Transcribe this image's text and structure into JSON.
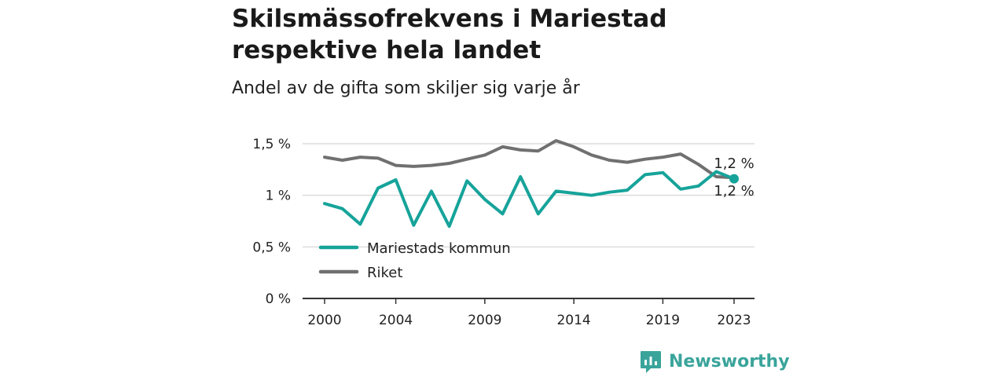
{
  "header": {
    "title": "Skilsmässofrekvens i Mariestad respektive hela landet",
    "subtitle": "Andel av de gifta som skiljer sig varje år"
  },
  "colors": {
    "mariestad": "#16a39a",
    "riket": "#707070",
    "grid": "#dcdcdc",
    "axis": "#333333",
    "brand": "#3aa49b"
  },
  "brand": {
    "name": "Newsworthy",
    "icon": "newsworthy-logo-icon"
  },
  "chart_data": {
    "type": "line",
    "title": "Skilsmässofrekvens i Mariestad respektive hela landet",
    "subtitle": "Andel av de gifta som skiljer sig varje år",
    "xlabel": "",
    "ylabel": "",
    "x": [
      2000,
      2001,
      2002,
      2003,
      2004,
      2005,
      2006,
      2007,
      2008,
      2009,
      2010,
      2011,
      2012,
      2013,
      2014,
      2015,
      2016,
      2017,
      2018,
      2019,
      2020,
      2021,
      2022,
      2023
    ],
    "xticks": [
      2000,
      2004,
      2009,
      2014,
      2019,
      2023
    ],
    "xtick_labels": [
      "2000",
      "2004",
      "2009",
      "2014",
      "2019",
      "2023"
    ],
    "yticks": [
      0,
      0.5,
      1,
      1.5
    ],
    "ytick_labels": [
      "0 %",
      "0,5 %",
      "1 %",
      "1,5 %"
    ],
    "ylim": [
      0,
      1.5
    ],
    "grid": true,
    "legend_position": "bottom-left",
    "series": [
      {
        "name": "Mariestads kommun",
        "color": "#16a39a",
        "values": [
          0.92,
          0.87,
          0.72,
          1.07,
          1.15,
          0.71,
          1.04,
          0.7,
          1.14,
          0.96,
          0.82,
          1.18,
          0.82,
          1.04,
          1.02,
          1.0,
          1.03,
          1.05,
          1.2,
          1.22,
          1.06,
          1.09,
          1.23,
          1.16
        ],
        "end_label": "1,2 %"
      },
      {
        "name": "Riket",
        "color": "#707070",
        "values": [
          1.37,
          1.34,
          1.37,
          1.36,
          1.29,
          1.28,
          1.29,
          1.31,
          1.35,
          1.39,
          1.47,
          1.44,
          1.43,
          1.53,
          1.47,
          1.39,
          1.34,
          1.32,
          1.35,
          1.37,
          1.4,
          1.3,
          1.18,
          1.17
        ],
        "end_label": "1,2 %"
      }
    ]
  }
}
